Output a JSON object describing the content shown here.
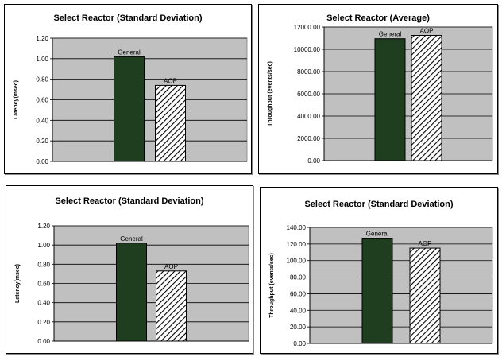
{
  "chart_data": [
    {
      "type": "bar",
      "title": "Select Reactor (Standard Deviation)",
      "ylabel": "Latency(msec)",
      "categories": [
        "General",
        "AOP"
      ],
      "values": [
        1.02,
        0.74
      ],
      "yticks": [
        "0.00",
        "0.20",
        "0.40",
        "0.60",
        "0.80",
        "1.00",
        "1.20"
      ],
      "ylim": [
        0,
        1.2
      ],
      "grid": true,
      "colors": {
        "General": "#1f3d1f",
        "AOP": "hatch",
        "plot_bg": "#c0c0c0"
      }
    },
    {
      "type": "bar",
      "title": "Select Reactor (Average)",
      "ylabel": "Throughput (events/sec)",
      "categories": [
        "General",
        "AOP"
      ],
      "values": [
        10950,
        11250
      ],
      "yticks": [
        "0.00",
        "2000.00",
        "4000.00",
        "6000.00",
        "8000.00",
        "10000.00",
        "12000.00"
      ],
      "ylim": [
        0,
        12000
      ],
      "grid": true,
      "colors": {
        "General": "#1f3d1f",
        "AOP": "hatch",
        "plot_bg": "#c0c0c0"
      }
    },
    {
      "type": "bar",
      "title": "Select Reactor (Standard Deviation)",
      "ylabel": "Latency(msec)",
      "categories": [
        "General",
        "AOP"
      ],
      "values": [
        1.02,
        0.73
      ],
      "yticks": [
        "0.00",
        "0.20",
        "0.40",
        "0.60",
        "0.80",
        "1.00",
        "1.20"
      ],
      "ylim": [
        0,
        1.2
      ],
      "grid": true,
      "colors": {
        "General": "#1f3d1f",
        "AOP": "hatch",
        "plot_bg": "#c0c0c0"
      }
    },
    {
      "type": "bar",
      "title": "Select Reactor (Standard Deviation)",
      "ylabel": "Throughput (events/sec)",
      "categories": [
        "General",
        "AOP"
      ],
      "values": [
        127,
        115
      ],
      "yticks": [
        "0.00",
        "20.00",
        "40.00",
        "60.00",
        "80.00",
        "100.00",
        "120.00",
        "140.00"
      ],
      "ylim": [
        0,
        140
      ],
      "grid": true,
      "colors": {
        "General": "#1f3d1f",
        "AOP": "hatch",
        "plot_bg": "#c0c0c0"
      }
    }
  ]
}
